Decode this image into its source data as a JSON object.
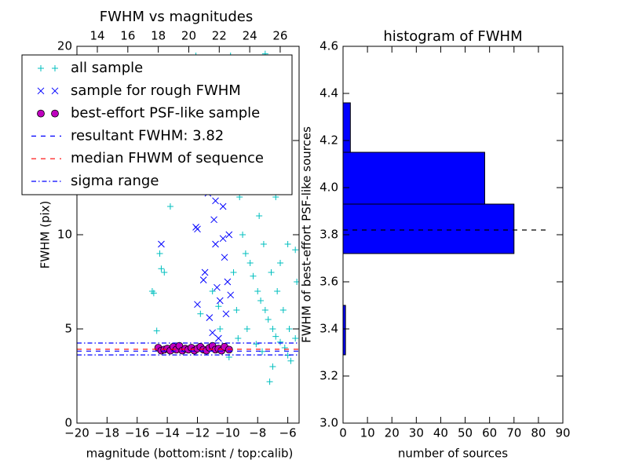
{
  "chart_data": [
    {
      "type": "scatter",
      "title": "FWHM vs magnitudes",
      "xlabel": "magnitude (bottom:isnt / top:calib)",
      "ylabel": "FWHM (pix)",
      "xlim": [
        -20,
        -5.25
      ],
      "xticks": [
        {
          "value": -20,
          "label": "−20"
        },
        {
          "value": -18,
          "label": "−18"
        },
        {
          "value": -16,
          "label": "−16"
        },
        {
          "value": -14,
          "label": "−14"
        },
        {
          "value": -12,
          "label": "−12"
        },
        {
          "value": -10,
          "label": "−10"
        },
        {
          "value": -8,
          "label": "−8"
        },
        {
          "value": -6,
          "label": "−6"
        }
      ],
      "x2lim": [
        12.66,
        27.24
      ],
      "x2ticks": [
        14,
        16,
        18,
        20,
        22,
        24,
        26
      ],
      "ylim": [
        0,
        20
      ],
      "yticks": [
        0,
        5,
        10,
        15,
        20
      ],
      "legend": "upper left",
      "series": [
        {
          "name": "all sample",
          "color": "#00bfbf",
          "marker": "plus",
          "x": [
            -9.8,
            -9.5,
            -9.2,
            -9,
            -8.8,
            -8.5,
            -8.3,
            -8,
            -7.8,
            -7.5,
            -7.3,
            -7,
            -6.8,
            -6.5,
            -6.2,
            -6,
            -5.8,
            -7,
            -7.2,
            -8,
            -8.5,
            -9,
            -7.5,
            -8.2,
            -7.9,
            -7.6,
            -7.1,
            -6.7,
            -6.3,
            -5.9,
            -5.5,
            -5.5,
            -6,
            -9.6,
            -9.4,
            -9.3,
            -8.7,
            -8.1,
            -7.7,
            -9.9,
            -15,
            -14.9,
            -14.7,
            -14.5,
            -14.4,
            -14.2,
            -13.5,
            -13.8,
            -12.5,
            -11.5,
            -11,
            -11.8,
            -10.6,
            -12.1,
            -10.5,
            -6.8,
            -7.3,
            -8.8,
            -6.5,
            -5.4
          ],
          "values": [
            19.5,
            14,
            12,
            10,
            9,
            8.5,
            7.8,
            7,
            6.5,
            6,
            5.5,
            5,
            4.6,
            4.3,
            4,
            3.6,
            3.3,
            3,
            2.2,
            18,
            16,
            17,
            19.6,
            13,
            11,
            9.5,
            8,
            7,
            6,
            5,
            4.5,
            9.2,
            9.5,
            8,
            6,
            4.5,
            5,
            4.2,
            3.8,
            3.5,
            7,
            6.9,
            4.9,
            9,
            8.2,
            8,
            13.5,
            11.5,
            12.5,
            16,
            7,
            5.8,
            6.2,
            19.5,
            5,
            12,
            14.5,
            12.5,
            8.5,
            7.5
          ]
        },
        {
          "name": "sample for rough FWHM",
          "color": "#0000ff",
          "marker": "x",
          "x": [
            -14.4,
            -12.1,
            -12,
            -12,
            -11.5,
            -11.3,
            -11,
            -10.8,
            -10.6,
            -10.5,
            -10.3,
            -10.2,
            -10,
            -10,
            -10.1,
            -9.9,
            -9.8,
            -10.7,
            -10.4,
            -10.9,
            -11.2,
            -10.6,
            -10.2,
            -10.8,
            -11.6,
            -10.3
          ],
          "values": [
            9.5,
            10.4,
            10.3,
            6.3,
            8,
            12.2,
            4.8,
            9.5,
            14,
            6.5,
            11.5,
            8.8,
            12.8,
            7.5,
            5.8,
            10,
            6.8,
            7.2,
            13.5,
            10.8,
            5.6,
            4.5,
            15.5,
            11.8,
            7.6,
            9.8
          ]
        },
        {
          "name": "best-effort PSF-like sample",
          "color": "#bf00bf",
          "marker": "circle",
          "x": [
            -14.6,
            -14.4,
            -14.2,
            -14,
            -13.8,
            -13.6,
            -13.4,
            -13.2,
            -13,
            -12.8,
            -12.6,
            -12.4,
            -12.2,
            -12,
            -11.8,
            -11.6,
            -11.4,
            -11.2,
            -11,
            -10.8,
            -10.6,
            -10.4,
            -10.2,
            -9.9
          ],
          "values": [
            4.0,
            3.85,
            3.9,
            3.95,
            3.85,
            4.05,
            3.9,
            4.1,
            3.85,
            3.95,
            3.9,
            4.0,
            3.85,
            3.95,
            4.05,
            3.9,
            3.85,
            4.0,
            4.1,
            3.9,
            3.95,
            3.85,
            4.05,
            3.9
          ]
        }
      ],
      "hlines": [
        {
          "name": "resultant FWHM: 3.82",
          "color": "#0000ff",
          "style": "dashed",
          "values": [
            3.82
          ]
        },
        {
          "name": "median FHWM of sequence",
          "color": "#ff0000",
          "style": "dashed",
          "values": [
            3.92
          ]
        },
        {
          "name": "sigma range",
          "color": "#0000ff",
          "style": "dashdot",
          "values": [
            4.25,
            3.62
          ]
        }
      ]
    },
    {
      "type": "barh-histogram",
      "title": "histogram of FWHM",
      "xlabel": "number of sources",
      "ylabel": "FWHM of best-effort PSF-like sources",
      "xlim": [
        0,
        90
      ],
      "xticks": [
        0,
        10,
        20,
        30,
        40,
        50,
        60,
        70,
        80,
        90
      ],
      "ylim": [
        3.0,
        4.6
      ],
      "yticks": [
        {
          "value": 3.0,
          "label": "3.0"
        },
        {
          "value": 3.2,
          "label": "3.2"
        },
        {
          "value": 3.4,
          "label": "3.4"
        },
        {
          "value": 3.6,
          "label": "3.6"
        },
        {
          "value": 3.8,
          "label": "3.8"
        },
        {
          "value": 4.0,
          "label": "4.0"
        },
        {
          "value": 4.2,
          "label": "4.2"
        },
        {
          "value": 4.4,
          "label": "4.4"
        },
        {
          "value": 4.6,
          "label": "4.6"
        }
      ],
      "bins": [
        3.29,
        3.5,
        3.72,
        3.93,
        4.15,
        4.36
      ],
      "values": [
        1,
        0,
        70,
        58,
        3
      ],
      "color": "#0000ff",
      "hline": {
        "value": 3.82,
        "x": [
          0,
          84
        ],
        "color": "#000000"
      }
    }
  ]
}
